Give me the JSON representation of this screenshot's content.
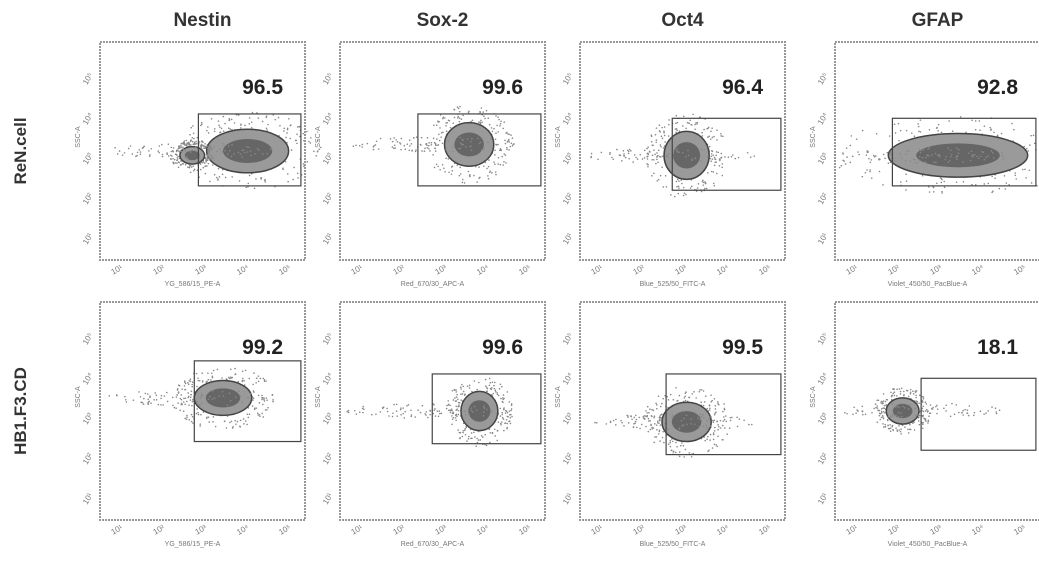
{
  "columns": [
    "Nestin",
    "Sox-2",
    "Oct4",
    "GFAP"
  ],
  "ticks": [
    "10¹",
    "10²",
    "10³",
    "10⁴",
    "10⁵"
  ],
  "rows": [
    {
      "label": "ReN.cell",
      "panels": [
        {
          "gate_percent": 96.5,
          "x_axis": "YG_586/15_PE-A",
          "y_axis": "SSC-A"
        },
        {
          "gate_percent": 99.6,
          "x_axis": "Red_670/30_APC-A",
          "y_axis": "SSC-A"
        },
        {
          "gate_percent": 96.4,
          "x_axis": "Blue_525/50_FITC-A",
          "y_axis": "SSC-A"
        },
        {
          "gate_percent": 92.8,
          "x_axis": "Violet_450/50_PacBlue-A",
          "y_axis": "SSC-A"
        }
      ]
    },
    {
      "label": "HB1.F3.CD",
      "panels": [
        {
          "gate_percent": 99.2,
          "x_axis": "YG_586/15_PE-A",
          "y_axis": "SSC-A"
        },
        {
          "gate_percent": 99.6,
          "x_axis": "Red_670/30_APC-A",
          "y_axis": "SSC-A"
        },
        {
          "gate_percent": 99.5,
          "x_axis": "Blue_525/50_FITC-A",
          "y_axis": "SSC-A"
        },
        {
          "gate_percent": 18.1,
          "x_axis": "Violet_450/50_PacBlue-A",
          "y_axis": "SSC-A"
        }
      ]
    }
  ]
}
